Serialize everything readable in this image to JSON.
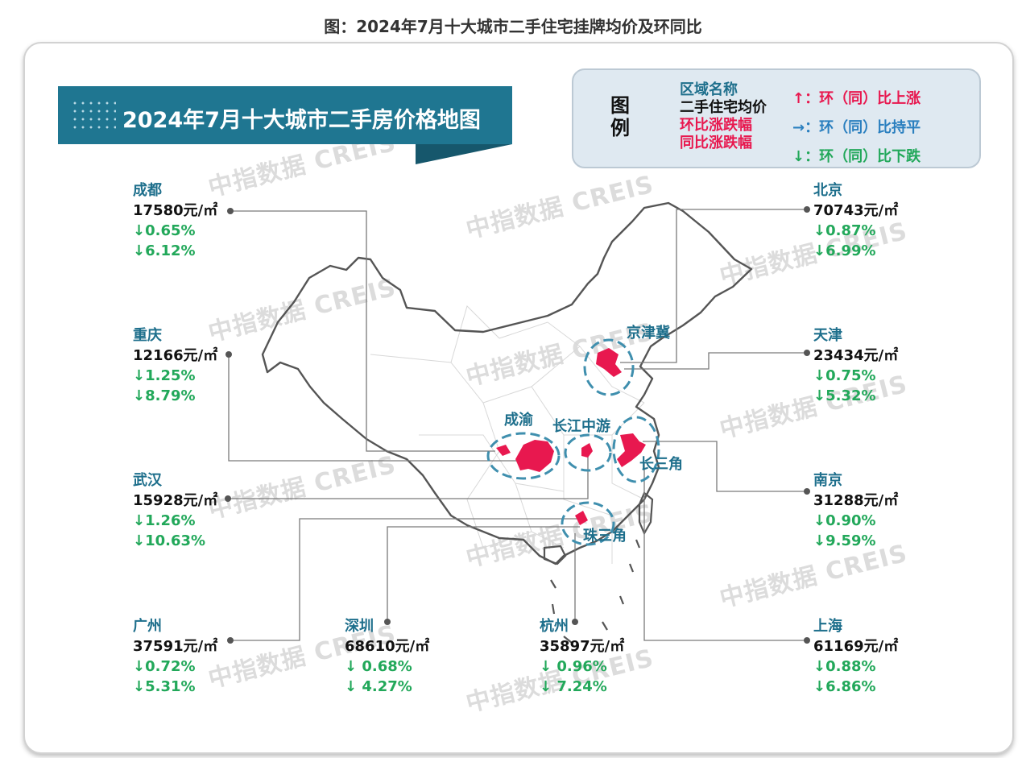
{
  "page_title": "图：2024年7月十大城市二手住宅挂牌均价及环同比",
  "banner": {
    "title": "2024年7月十大城市二手房价格地图"
  },
  "legend": {
    "head": [
      "图",
      "例"
    ],
    "items": [
      {
        "text": "区域名称",
        "color": "#1e6f8c"
      },
      {
        "text": "二手住宅均价",
        "color": "#111111"
      },
      {
        "text": "环比涨跌幅",
        "color": "#e8184f"
      },
      {
        "text": "同比涨跌幅",
        "color": "#e8184f"
      }
    ],
    "trends": [
      {
        "text": "↑：环（同）比上涨",
        "color": "#e8184f"
      },
      {
        "text": "→：环（同）比持平",
        "color": "#2a7fbf"
      },
      {
        "text": "↓：环（同）比下跌",
        "color": "#22a85a"
      }
    ]
  },
  "watermark": {
    "text": "中指数据 CREIS"
  },
  "colors": {
    "name": "#1e6f8c",
    "down": "#22a85a",
    "up": "#e8184f",
    "flat": "#2a7fbf",
    "banner": "#1f7691",
    "cluster": "#e8184f"
  },
  "cities": [
    {
      "id": "chengdu",
      "name": "成都",
      "price": "17580元/㎡",
      "mom": "↓0.65%",
      "yoy": "↓6.12%"
    },
    {
      "id": "chongqing",
      "name": "重庆",
      "price": "12166元/㎡",
      "mom": "↓1.25%",
      "yoy": "↓8.79%"
    },
    {
      "id": "wuhan",
      "name": "武汉",
      "price": "15928元/㎡",
      "mom": "↓1.26%",
      "yoy": "↓10.63%"
    },
    {
      "id": "guangzhou",
      "name": "广州",
      "price": "37591元/㎡",
      "mom": "↓0.72%",
      "yoy": "↓5.31%"
    },
    {
      "id": "shenzhen",
      "name": "深圳",
      "price": "68610元/㎡",
      "mom": "↓ 0.68%",
      "yoy": "↓ 4.27%"
    },
    {
      "id": "hangzhou",
      "name": "杭州",
      "price": "35897元/㎡",
      "mom": "↓ 0.96%",
      "yoy": "↓ 7.24%"
    },
    {
      "id": "beijing",
      "name": "北京",
      "price": "70743元/㎡",
      "mom": "↓0.87%",
      "yoy": "↓6.99%"
    },
    {
      "id": "tianjin",
      "name": "天津",
      "price": "23434元/㎡",
      "mom": "↓0.75%",
      "yoy": "↓5.32%"
    },
    {
      "id": "nanjing",
      "name": "南京",
      "price": "31288元/㎡",
      "mom": "↓0.90%",
      "yoy": "↓9.59%"
    },
    {
      "id": "shanghai",
      "name": "上海",
      "price": "61169元/㎡",
      "mom": "↓0.88%",
      "yoy": "↓6.86%"
    }
  ],
  "regions": [
    {
      "id": "jingjinji",
      "name": "京津冀"
    },
    {
      "id": "chengyu",
      "name": "成渝"
    },
    {
      "id": "changjiang",
      "name": "长江中游"
    },
    {
      "id": "changsanjiao",
      "name": "长三角"
    },
    {
      "id": "zhusanjiao",
      "name": "珠三角"
    }
  ]
}
